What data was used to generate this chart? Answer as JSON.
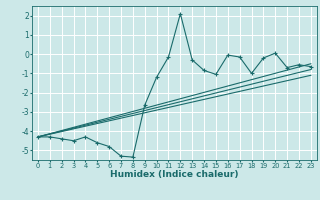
{
  "xlabel": "Humidex (Indice chaleur)",
  "bg_color": "#cce8e8",
  "grid_color": "#ffffff",
  "line_color": "#1a6b6b",
  "xlim": [
    -0.5,
    23.5
  ],
  "ylim": [
    -5.5,
    2.5
  ],
  "yticks": [
    -5,
    -4,
    -3,
    -2,
    -1,
    0,
    1,
    2
  ],
  "xticks": [
    0,
    1,
    2,
    3,
    4,
    5,
    6,
    7,
    8,
    9,
    10,
    11,
    12,
    13,
    14,
    15,
    16,
    17,
    18,
    19,
    20,
    21,
    22,
    23
  ],
  "series1_x": [
    0,
    1,
    2,
    3,
    4,
    5,
    6,
    7,
    8,
    9,
    10,
    11,
    12,
    13,
    14,
    15,
    16,
    17,
    18,
    19,
    20,
    21,
    22,
    23
  ],
  "series1_y": [
    -4.3,
    -4.3,
    -4.4,
    -4.5,
    -4.3,
    -4.6,
    -4.8,
    -5.3,
    -5.35,
    -2.65,
    -1.2,
    -0.15,
    2.1,
    -0.3,
    -0.85,
    -1.05,
    -0.05,
    -0.15,
    -1.0,
    -0.2,
    0.05,
    -0.7,
    -0.55,
    -0.65
  ],
  "line2_x": [
    0,
    23
  ],
  "line2_y": [
    -4.3,
    -0.5
  ],
  "line3_x": [
    0,
    23
  ],
  "line3_y": [
    -4.3,
    -0.8
  ],
  "line4_x": [
    0,
    23
  ],
  "line4_y": [
    -4.3,
    -1.1
  ]
}
